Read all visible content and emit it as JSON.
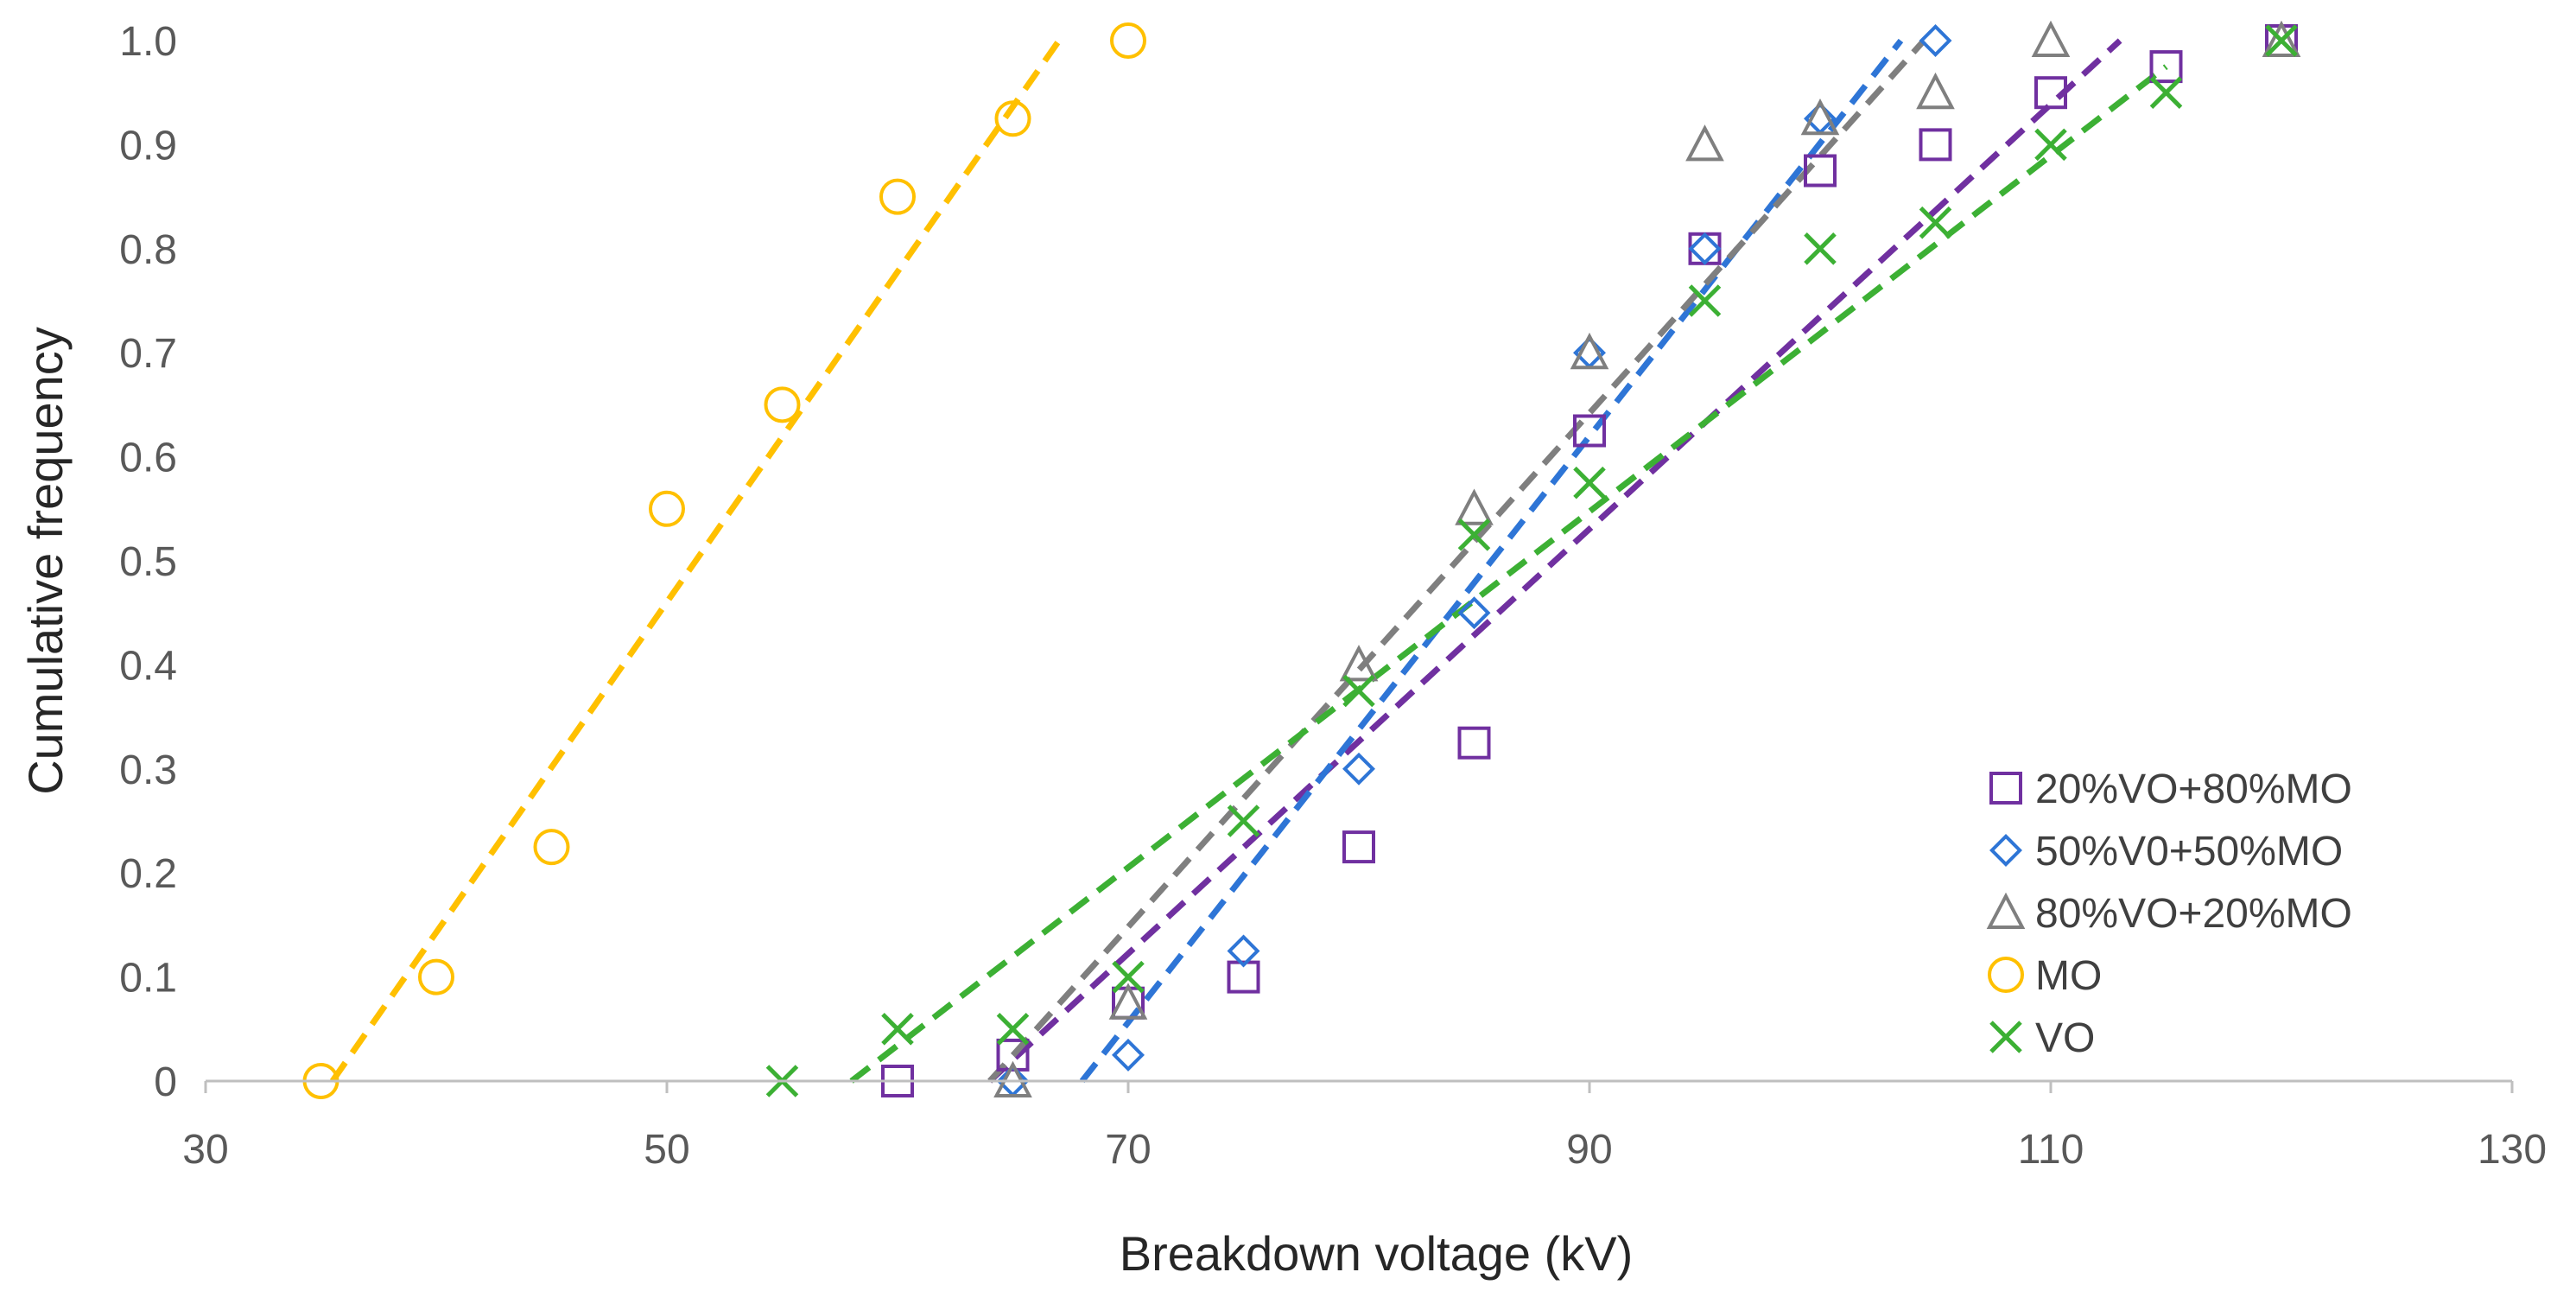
{
  "chart_data": {
    "type": "scatter",
    "title": "",
    "xlabel": "Breakdown voltage (kV)",
    "ylabel": "Cumulative frequency",
    "xlim": [
      30,
      130
    ],
    "ylim": [
      0,
      1.0
    ],
    "x_ticks": [
      30,
      50,
      70,
      90,
      110,
      130
    ],
    "y_ticks": [
      0,
      0.1,
      0.2,
      0.3,
      0.4,
      0.5,
      0.6,
      0.7,
      0.8,
      0.9,
      1.0
    ],
    "x_tick_labels": [
      "30",
      "50",
      "70",
      "90",
      "110",
      "130"
    ],
    "y_tick_labels": [
      "0",
      "0.1",
      "0.2",
      "0.3",
      "0.4",
      "0.5",
      "0.6",
      "0.7",
      "0.8",
      "0.9",
      "1.0"
    ],
    "grid": false,
    "legend_position": "bottom-right",
    "series": [
      {
        "name": "20%VO+80%MO",
        "marker": "square",
        "color": "#7030A0",
        "points": [
          [
            60,
            0
          ],
          [
            65,
            0.025
          ],
          [
            70,
            0.075
          ],
          [
            75,
            0.1
          ],
          [
            80,
            0.225
          ],
          [
            85,
            0.325
          ],
          [
            90,
            0.625
          ],
          [
            95,
            0.8
          ],
          [
            100,
            0.875
          ],
          [
            105,
            0.9
          ],
          [
            110,
            0.95
          ],
          [
            115,
            0.975
          ],
          [
            120,
            1.0
          ]
        ],
        "trend": [
          [
            64,
            0
          ],
          [
            113,
            1.0
          ]
        ]
      },
      {
        "name": "50%V0+50%MO",
        "marker": "diamond",
        "color": "#2E75D6",
        "points": [
          [
            65,
            0
          ],
          [
            70,
            0.025
          ],
          [
            75,
            0.125
          ],
          [
            80,
            0.3
          ],
          [
            85,
            0.45
          ],
          [
            90,
            0.7
          ],
          [
            95,
            0.8
          ],
          [
            100,
            0.925
          ],
          [
            105,
            1.0
          ]
        ],
        "trend": [
          [
            68,
            0
          ],
          [
            103.5,
            1.0
          ]
        ]
      },
      {
        "name": "80%VO+20%MO",
        "marker": "triangle",
        "color": "#7F7F7F",
        "points": [
          [
            65,
            0
          ],
          [
            70,
            0.075
          ],
          [
            80,
            0.4
          ],
          [
            85,
            0.55
          ],
          [
            90,
            0.7
          ],
          [
            95,
            0.9
          ],
          [
            100,
            0.925
          ],
          [
            105,
            0.95
          ],
          [
            110,
            1.0
          ],
          [
            120,
            1.0
          ]
        ],
        "trend": [
          [
            64,
            0
          ],
          [
            104.5,
            1.0
          ]
        ]
      },
      {
        "name": "MO",
        "marker": "circle",
        "color": "#FFC000",
        "points": [
          [
            35,
            0
          ],
          [
            40,
            0.1
          ],
          [
            45,
            0.225
          ],
          [
            50,
            0.55
          ],
          [
            55,
            0.65
          ],
          [
            60,
            0.85
          ],
          [
            65,
            0.925
          ],
          [
            70,
            1.0
          ]
        ],
        "trend": [
          [
            35.5,
            0
          ],
          [
            67,
            1.0
          ]
        ]
      },
      {
        "name": "VO",
        "marker": "x",
        "color": "#3CB034",
        "points": [
          [
            55,
            0
          ],
          [
            60,
            0.05
          ],
          [
            65,
            0.05
          ],
          [
            70,
            0.1
          ],
          [
            75,
            0.25
          ],
          [
            80,
            0.375
          ],
          [
            85,
            0.525
          ],
          [
            90,
            0.575
          ],
          [
            95,
            0.75
          ],
          [
            100,
            0.8
          ],
          [
            105,
            0.825
          ],
          [
            110,
            0.9
          ],
          [
            115,
            0.95
          ],
          [
            120,
            1.0
          ]
        ],
        "trend": [
          [
            58,
            0
          ],
          [
            115,
            0.975
          ]
        ]
      }
    ]
  }
}
